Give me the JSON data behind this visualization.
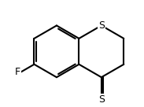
{
  "background_color": "#ffffff",
  "line_color": "#000000",
  "line_width": 1.5,
  "font_size": 9,
  "label_F": "F",
  "label_S_ring": "S",
  "label_S_thione": "S",
  "figsize": [
    1.83,
    1.36
  ],
  "dpi": 100,
  "xlim": [
    0,
    10
  ],
  "ylim": [
    0,
    7.5
  ]
}
